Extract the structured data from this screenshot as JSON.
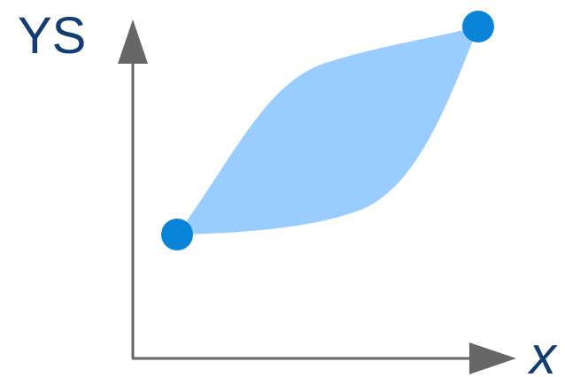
{
  "y_axis": {
    "label": "YS"
  },
  "x_axis": {
    "label": "x"
  }
}
